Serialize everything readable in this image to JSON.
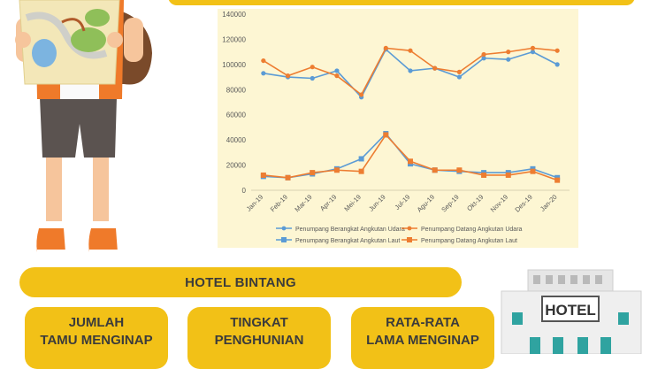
{
  "chart_data": {
    "type": "line",
    "categories": [
      "Jan-19",
      "Feb-19",
      "Mar-19",
      "Apr-19",
      "Mei-19",
      "Jun-19",
      "Jul-19",
      "Agu-19",
      "Sep-19",
      "Okt-19",
      "Nov-19",
      "Des-19",
      "Jan-20"
    ],
    "ylim": [
      0,
      140000
    ],
    "yticks": [
      "0",
      "20000",
      "40000",
      "60000",
      "80000",
      "100000",
      "120000",
      "140000"
    ],
    "grid": false,
    "legend_position": "bottom",
    "series": [
      {
        "name": "Penumpang Berangkat Angkutan Udara",
        "color": "#5b9bd5",
        "marker": "circle",
        "values": [
          93000,
          90000,
          89000,
          95000,
          74000,
          112000,
          95000,
          97000,
          90000,
          105000,
          104000,
          110000,
          100000
        ]
      },
      {
        "name": "Penumpang Datang Angkutan Udara",
        "color": "#ed7d31",
        "marker": "circle",
        "values": [
          103000,
          91000,
          98000,
          91000,
          76000,
          113000,
          111000,
          97000,
          94000,
          108000,
          110000,
          113000,
          111000
        ]
      },
      {
        "name": "Penumpang Berangkat Angkutan Laut",
        "color": "#5b9bd5",
        "marker": "square",
        "values": [
          11000,
          10000,
          13000,
          17000,
          25000,
          45000,
          21000,
          16000,
          15000,
          14000,
          14000,
          17000,
          10000
        ]
      },
      {
        "name": "Penumpang Datang Angkutan Laut",
        "color": "#ed7d31",
        "marker": "square",
        "values": [
          12000,
          10000,
          14000,
          16000,
          15000,
          44000,
          23000,
          16000,
          16000,
          12000,
          12000,
          15000,
          8000
        ]
      }
    ]
  },
  "hotel_section": {
    "title": "HOTEL BINTANG",
    "cards": [
      {
        "line1": "JUMLAH",
        "line2": "TAMU MENGINAP"
      },
      {
        "line1": "TINGKAT",
        "line2": "PENGHUNIAN"
      },
      {
        "line1": "RATA-RATA",
        "line2": "LAMA MENGINAP"
      }
    ],
    "building_sign": "HOTEL"
  },
  "colors": {
    "accent": "#f2c117",
    "panel": "#fdf6d3",
    "udara_blue": "#5b9bd5",
    "laut_orange": "#ed7d31"
  }
}
